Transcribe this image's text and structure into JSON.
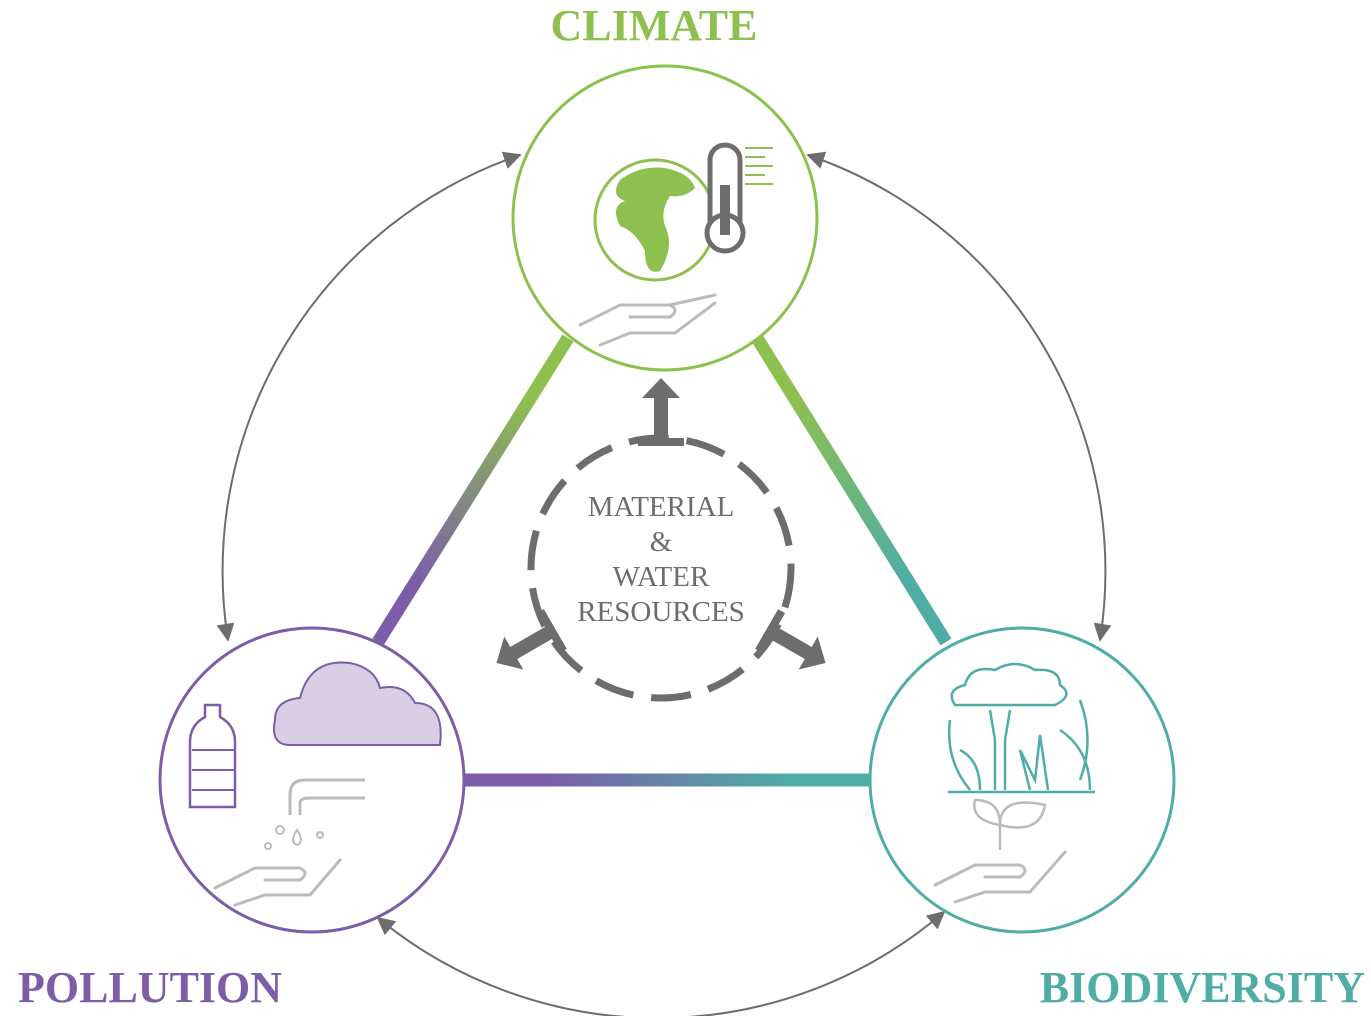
{
  "nodes": [
    {
      "label": "CLIMATE"
    },
    {
      "label": "POLLUTION"
    },
    {
      "label": "BIODIVERSITY"
    }
  ],
  "center": {
    "lines": [
      "MATERIAL",
      "&",
      "WATER",
      "RESOURCES"
    ]
  }
}
